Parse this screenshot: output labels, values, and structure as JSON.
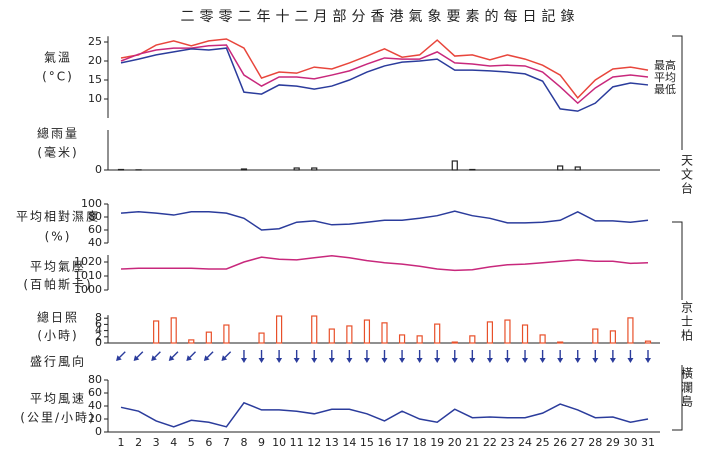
{
  "title": "二零零二年十二月部分香港氣象要素的每日記錄",
  "days": [
    1,
    2,
    3,
    4,
    5,
    6,
    7,
    8,
    9,
    10,
    11,
    12,
    13,
    14,
    15,
    16,
    17,
    18,
    19,
    20,
    21,
    22,
    23,
    24,
    25,
    26,
    27,
    28,
    29,
    30,
    31
  ],
  "stations": [
    "天文台",
    "京士柏",
    "橫瀾島"
  ],
  "chart_data": [
    {
      "type": "line",
      "label": [
        "氣溫",
        "(°C)"
      ],
      "ylim": [
        5,
        26.5
      ],
      "yticks": [
        10,
        15,
        20,
        25
      ],
      "series": [
        {
          "name": "最高",
          "color": "#e8463c",
          "values": [
            20.8,
            21.6,
            24.2,
            25.3,
            24,
            25.3,
            25.8,
            23.4,
            15.5,
            17.1,
            16.8,
            18.4,
            17.9,
            19.5,
            21.3,
            23.2,
            21,
            21.6,
            25.5,
            21.3,
            21.6,
            20.3,
            21.6,
            20.5,
            18.9,
            16.3,
            10.3,
            15,
            17.9,
            18.4,
            17.6
          ]
        },
        {
          "name": "平均",
          "color": "#c8287c",
          "values": [
            20,
            21.8,
            22.9,
            23.4,
            23.4,
            24,
            24.2,
            16.3,
            13.4,
            15.8,
            15.8,
            15.3,
            16.3,
            17.4,
            19.2,
            20.8,
            20.5,
            20.5,
            22.4,
            19.5,
            19.2,
            18.7,
            18.9,
            18.7,
            17.1,
            13.2,
            8.9,
            12.9,
            15.8,
            16.3,
            15.8
          ]
        },
        {
          "name": "最低",
          "color": "#2b3c9c",
          "values": [
            19.5,
            20.5,
            21.6,
            22.4,
            23.2,
            22.9,
            23.4,
            11.8,
            11.3,
            13.7,
            13.4,
            12.6,
            13.4,
            15,
            17.1,
            18.7,
            19.7,
            20,
            20.5,
            17.6,
            17.6,
            17.4,
            17.1,
            16.6,
            14.7,
            7.4,
            6.8,
            8.9,
            13.2,
            14.2,
            13.7
          ]
        }
      ]
    },
    {
      "type": "bar",
      "label": [
        "總雨量",
        "(毫米)"
      ],
      "ylim": [
        0,
        40
      ],
      "yticks": [
        0
      ],
      "color": "#222222",
      "values": [
        0.5,
        0.2,
        0,
        0,
        0,
        0,
        0,
        1,
        0,
        0,
        2,
        2,
        0,
        0,
        0,
        0,
        0,
        0,
        0,
        9,
        0.5,
        0,
        0,
        0,
        0,
        4,
        3,
        0,
        0,
        0,
        0
      ]
    },
    {
      "type": "line",
      "label": [
        "平均相對濕度",
        "(%)"
      ],
      "ylim": [
        40,
        100
      ],
      "yticks": [
        40,
        60,
        80,
        100
      ],
      "color": "#2b3c9c",
      "values": [
        86,
        88,
        86,
        83,
        88,
        88,
        86,
        78,
        60,
        62,
        72,
        74,
        68,
        69,
        72,
        75,
        75,
        78,
        82,
        89,
        82,
        78,
        71,
        71,
        72,
        75,
        88,
        74,
        74,
        72,
        75
      ]
    },
    {
      "type": "line",
      "label": [
        "平均氣壓",
        "(百帕斯卡)"
      ],
      "ylim": [
        1000,
        1025
      ],
      "yticks": [
        1000,
        1010,
        1020
      ],
      "color": "#c8287c",
      "values": [
        1015,
        1015.5,
        1015.5,
        1015.5,
        1015.5,
        1015,
        1015,
        1020,
        1023.5,
        1022,
        1021.5,
        1023,
        1024.5,
        1023,
        1021,
        1019.5,
        1018.5,
        1017,
        1015,
        1014,
        1014.5,
        1016.5,
        1018,
        1018.5,
        1019.5,
        1020.5,
        1021.5,
        1020.5,
        1020.5,
        1019,
        1019.5
      ]
    },
    {
      "type": "bar",
      "label": [
        "總日照",
        "(小時)"
      ],
      "ylim": [
        0,
        9
      ],
      "yticks": [
        0,
        2,
        4,
        6,
        8
      ],
      "color": "#e8502a",
      "values": [
        0,
        0,
        7.1,
        8.1,
        1,
        3.5,
        5.8,
        0,
        3.2,
        8.7,
        0,
        8.7,
        4.5,
        5.5,
        7.4,
        6.5,
        2.6,
        2.3,
        6.1,
        0.3,
        2.3,
        6.8,
        7.4,
        5.8,
        2.6,
        0.3,
        0,
        4.5,
        3.9,
        8.1,
        0.6
      ]
    },
    {
      "type": "arrow",
      "label": [
        "盛行風向"
      ],
      "color": "#2b3c9c",
      "values": [
        45,
        45,
        45,
        45,
        45,
        45,
        45,
        0,
        0,
        0,
        0,
        0,
        0,
        0,
        0,
        0,
        0,
        0,
        0,
        0,
        0,
        0,
        0,
        0,
        0,
        0,
        0,
        0,
        0,
        0,
        0
      ]
    },
    {
      "type": "line",
      "label": [
        "平均風速",
        "(公里/小時)"
      ],
      "ylim": [
        0,
        80
      ],
      "yticks": [
        0,
        20,
        40,
        60,
        80
      ],
      "color": "#2b3c9c",
      "values": [
        38,
        32,
        17,
        8,
        18,
        15,
        8,
        45,
        34,
        34,
        32,
        28,
        35,
        35,
        28,
        17,
        32,
        20,
        15,
        35,
        22,
        23,
        22,
        22,
        29,
        43,
        34,
        22,
        23,
        15,
        20
      ]
    }
  ]
}
